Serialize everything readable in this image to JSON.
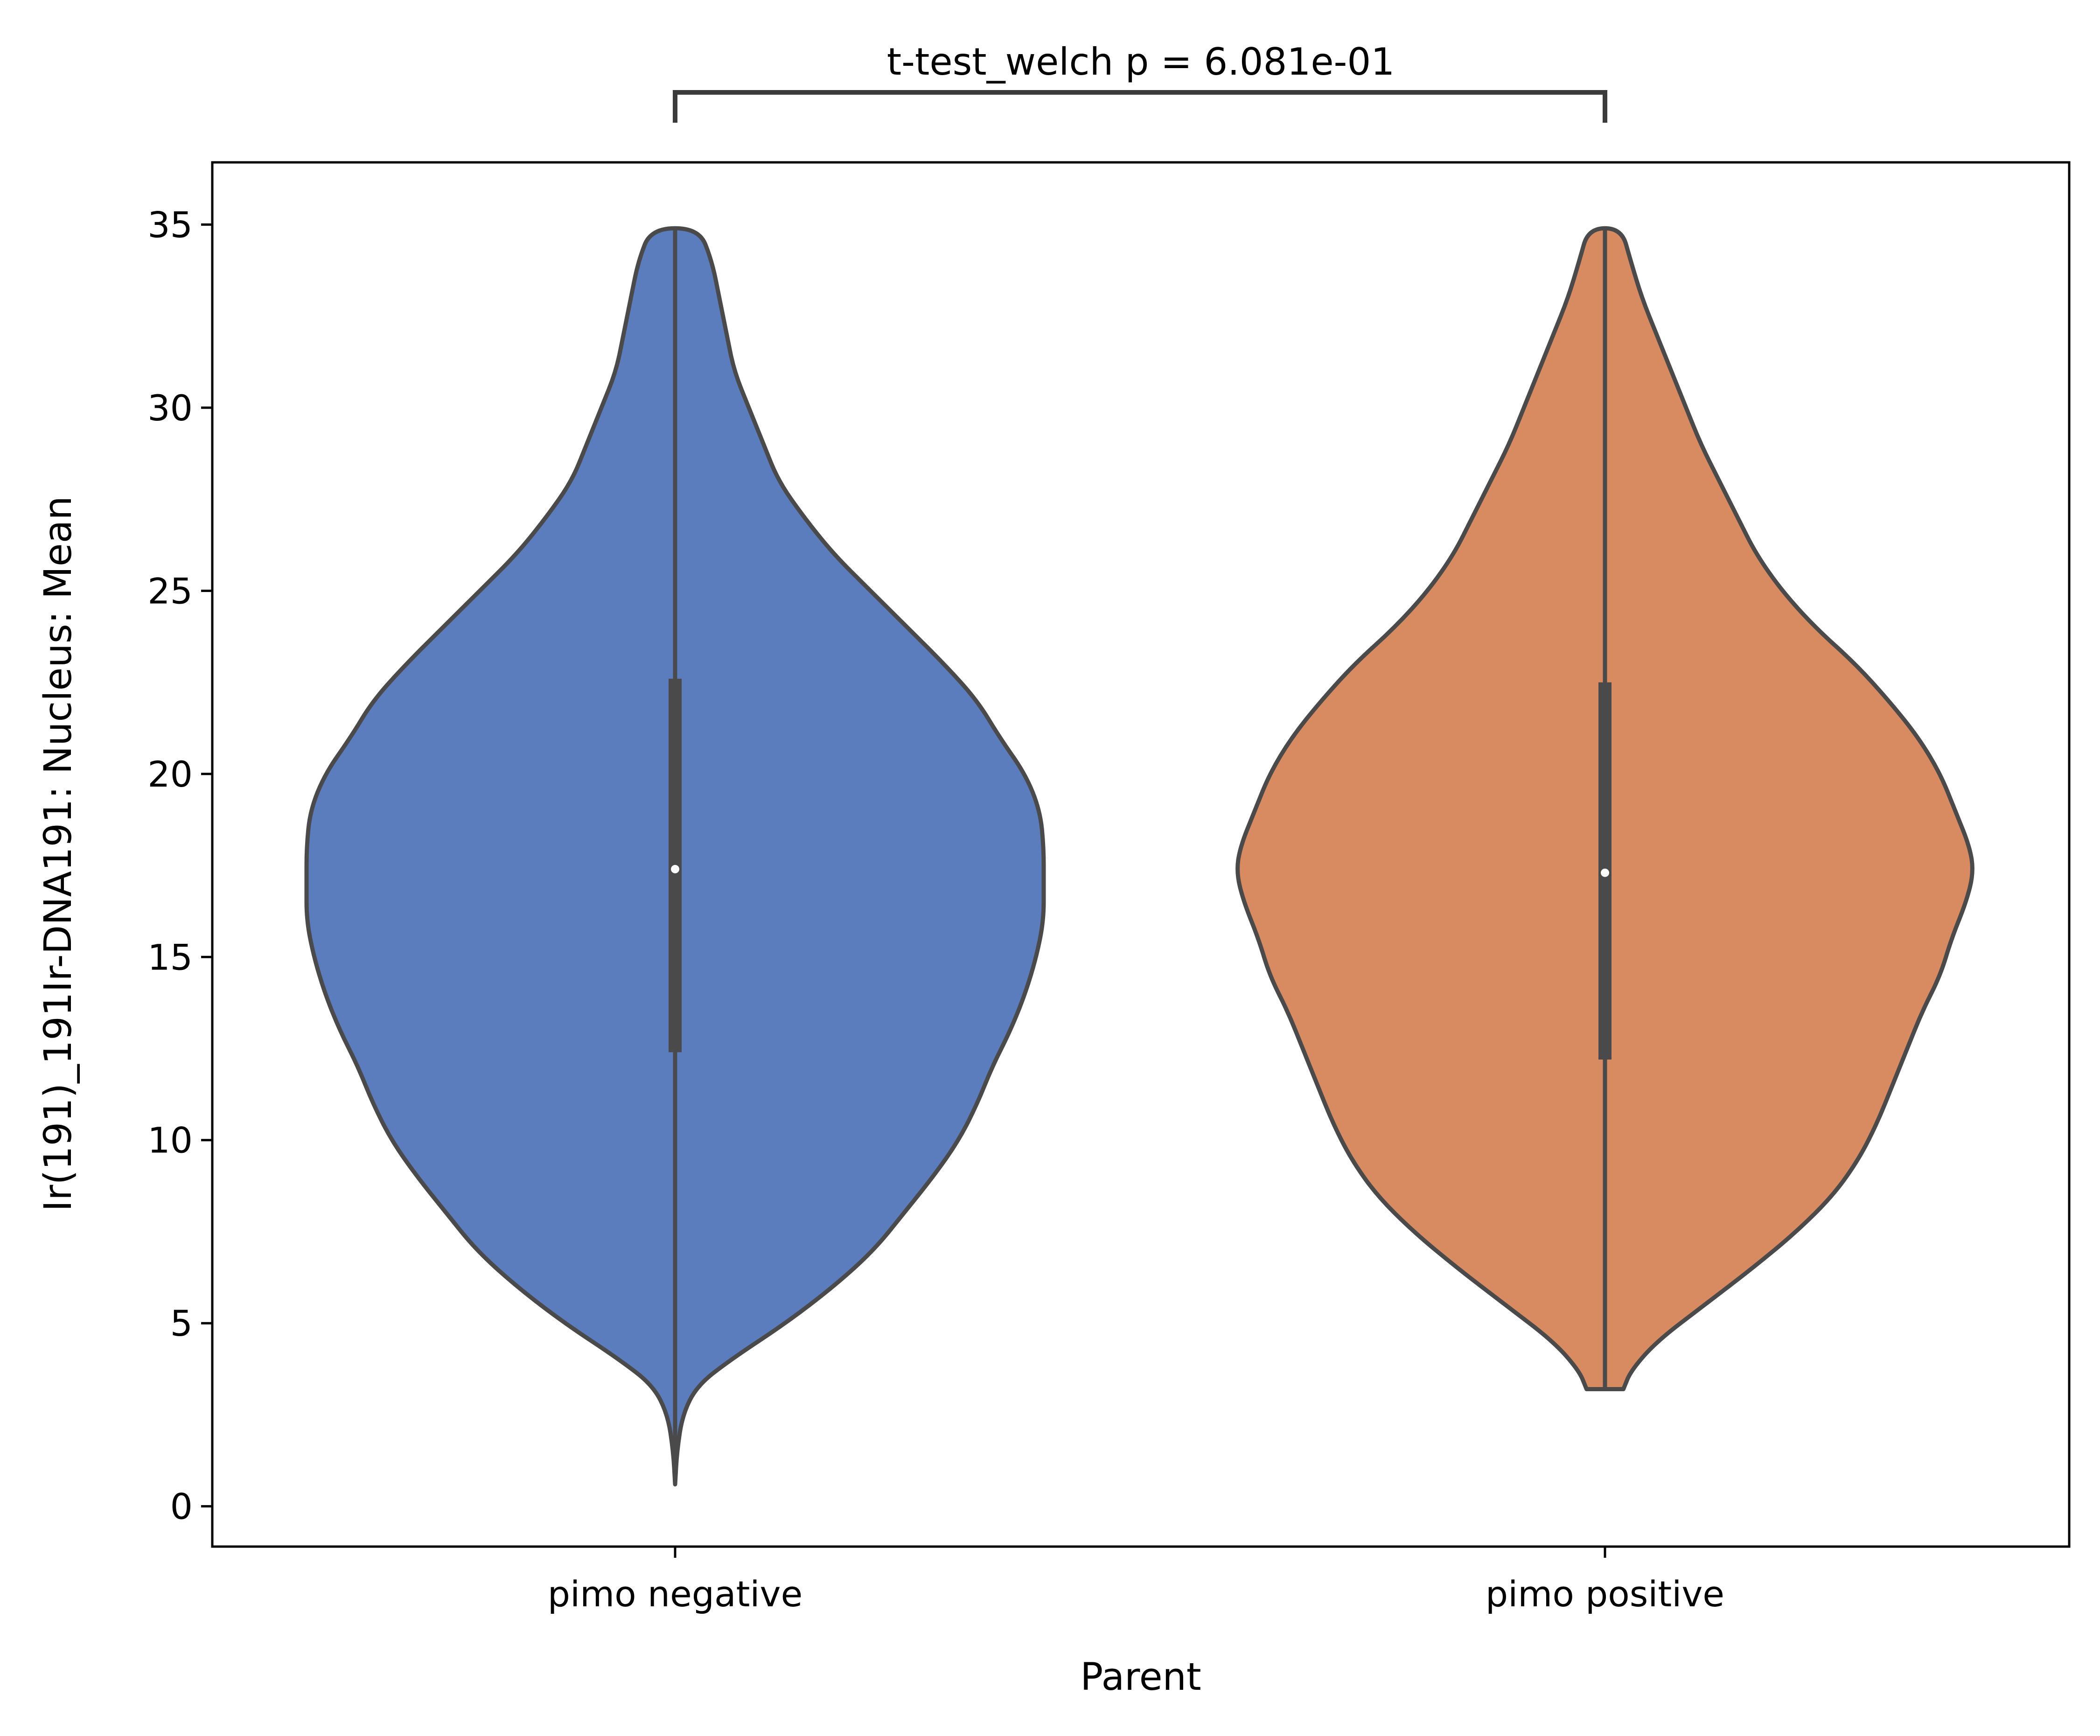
{
  "chart_data": {
    "type": "violin",
    "title": "",
    "xlabel": "Parent",
    "ylabel": "Ir(191)_191Ir-DNA191: Nucleus: Mean",
    "categories": [
      "pimo negative",
      "pimo positive"
    ],
    "ylim": [
      -1.1,
      36.7
    ],
    "yticks": [
      0,
      5,
      10,
      15,
      20,
      25,
      30,
      35
    ],
    "ytick_labels": [
      "0",
      "5",
      "10",
      "15",
      "20",
      "25",
      "30",
      "35"
    ],
    "grid": false,
    "legend": "none",
    "annotation": {
      "text": "t-test_welch p = 6.081e-01",
      "between": [
        "pimo negative",
        "pimo positive"
      ]
    },
    "series": [
      {
        "category": "pimo negative",
        "color": "#5b7dbe",
        "min": 0.6,
        "max": 34.9,
        "q1": 12.4,
        "median": 17.4,
        "q3": 22.6,
        "density_profile": [
          [
            0.6,
            0.0
          ],
          [
            1.5,
            0.005
          ],
          [
            2.5,
            0.02
          ],
          [
            3.3,
            0.06
          ],
          [
            4.0,
            0.15
          ],
          [
            5.0,
            0.3
          ],
          [
            6.0,
            0.43
          ],
          [
            7.0,
            0.54
          ],
          [
            8.0,
            0.62
          ],
          [
            9.0,
            0.7
          ],
          [
            10.0,
            0.77
          ],
          [
            11.0,
            0.82
          ],
          [
            12.0,
            0.86
          ],
          [
            13.0,
            0.91
          ],
          [
            14.0,
            0.95
          ],
          [
            15.0,
            0.98
          ],
          [
            16.0,
            1.0
          ],
          [
            17.0,
            1.0
          ],
          [
            18.0,
            1.0
          ],
          [
            19.0,
            0.99
          ],
          [
            20.0,
            0.95
          ],
          [
            21.0,
            0.88
          ],
          [
            22.0,
            0.82
          ],
          [
            23.0,
            0.73
          ],
          [
            24.0,
            0.63
          ],
          [
            25.0,
            0.53
          ],
          [
            26.0,
            0.43
          ],
          [
            27.0,
            0.35
          ],
          [
            28.0,
            0.28
          ],
          [
            29.0,
            0.24
          ],
          [
            30.0,
            0.2
          ],
          [
            31.0,
            0.16
          ],
          [
            32.0,
            0.14
          ],
          [
            33.0,
            0.12
          ],
          [
            34.0,
            0.1
          ],
          [
            34.9,
            0.065
          ]
        ]
      },
      {
        "category": "pimo positive",
        "color": "#d88a60",
        "min": 3.2,
        "max": 34.9,
        "q1": 12.2,
        "median": 17.3,
        "q3": 22.5,
        "density_profile": [
          [
            3.2,
            0.05
          ],
          [
            3.7,
            0.07
          ],
          [
            4.5,
            0.14
          ],
          [
            5.5,
            0.27
          ],
          [
            6.5,
            0.4
          ],
          [
            7.5,
            0.52
          ],
          [
            8.5,
            0.62
          ],
          [
            9.5,
            0.69
          ],
          [
            10.5,
            0.74
          ],
          [
            11.5,
            0.78
          ],
          [
            12.5,
            0.82
          ],
          [
            13.5,
            0.86
          ],
          [
            14.5,
            0.91
          ],
          [
            15.5,
            0.94
          ],
          [
            16.5,
            0.98
          ],
          [
            17.3,
            1.0
          ],
          [
            18.0,
            0.99
          ],
          [
            19.0,
            0.95
          ],
          [
            20.0,
            0.91
          ],
          [
            21.0,
            0.85
          ],
          [
            22.0,
            0.77
          ],
          [
            23.0,
            0.68
          ],
          [
            24.0,
            0.57
          ],
          [
            25.0,
            0.48
          ],
          [
            26.0,
            0.41
          ],
          [
            27.0,
            0.36
          ],
          [
            28.0,
            0.31
          ],
          [
            29.0,
            0.26
          ],
          [
            30.0,
            0.22
          ],
          [
            31.0,
            0.18
          ],
          [
            32.0,
            0.14
          ],
          [
            33.0,
            0.1
          ],
          [
            34.0,
            0.07
          ],
          [
            34.9,
            0.045
          ]
        ]
      }
    ]
  }
}
